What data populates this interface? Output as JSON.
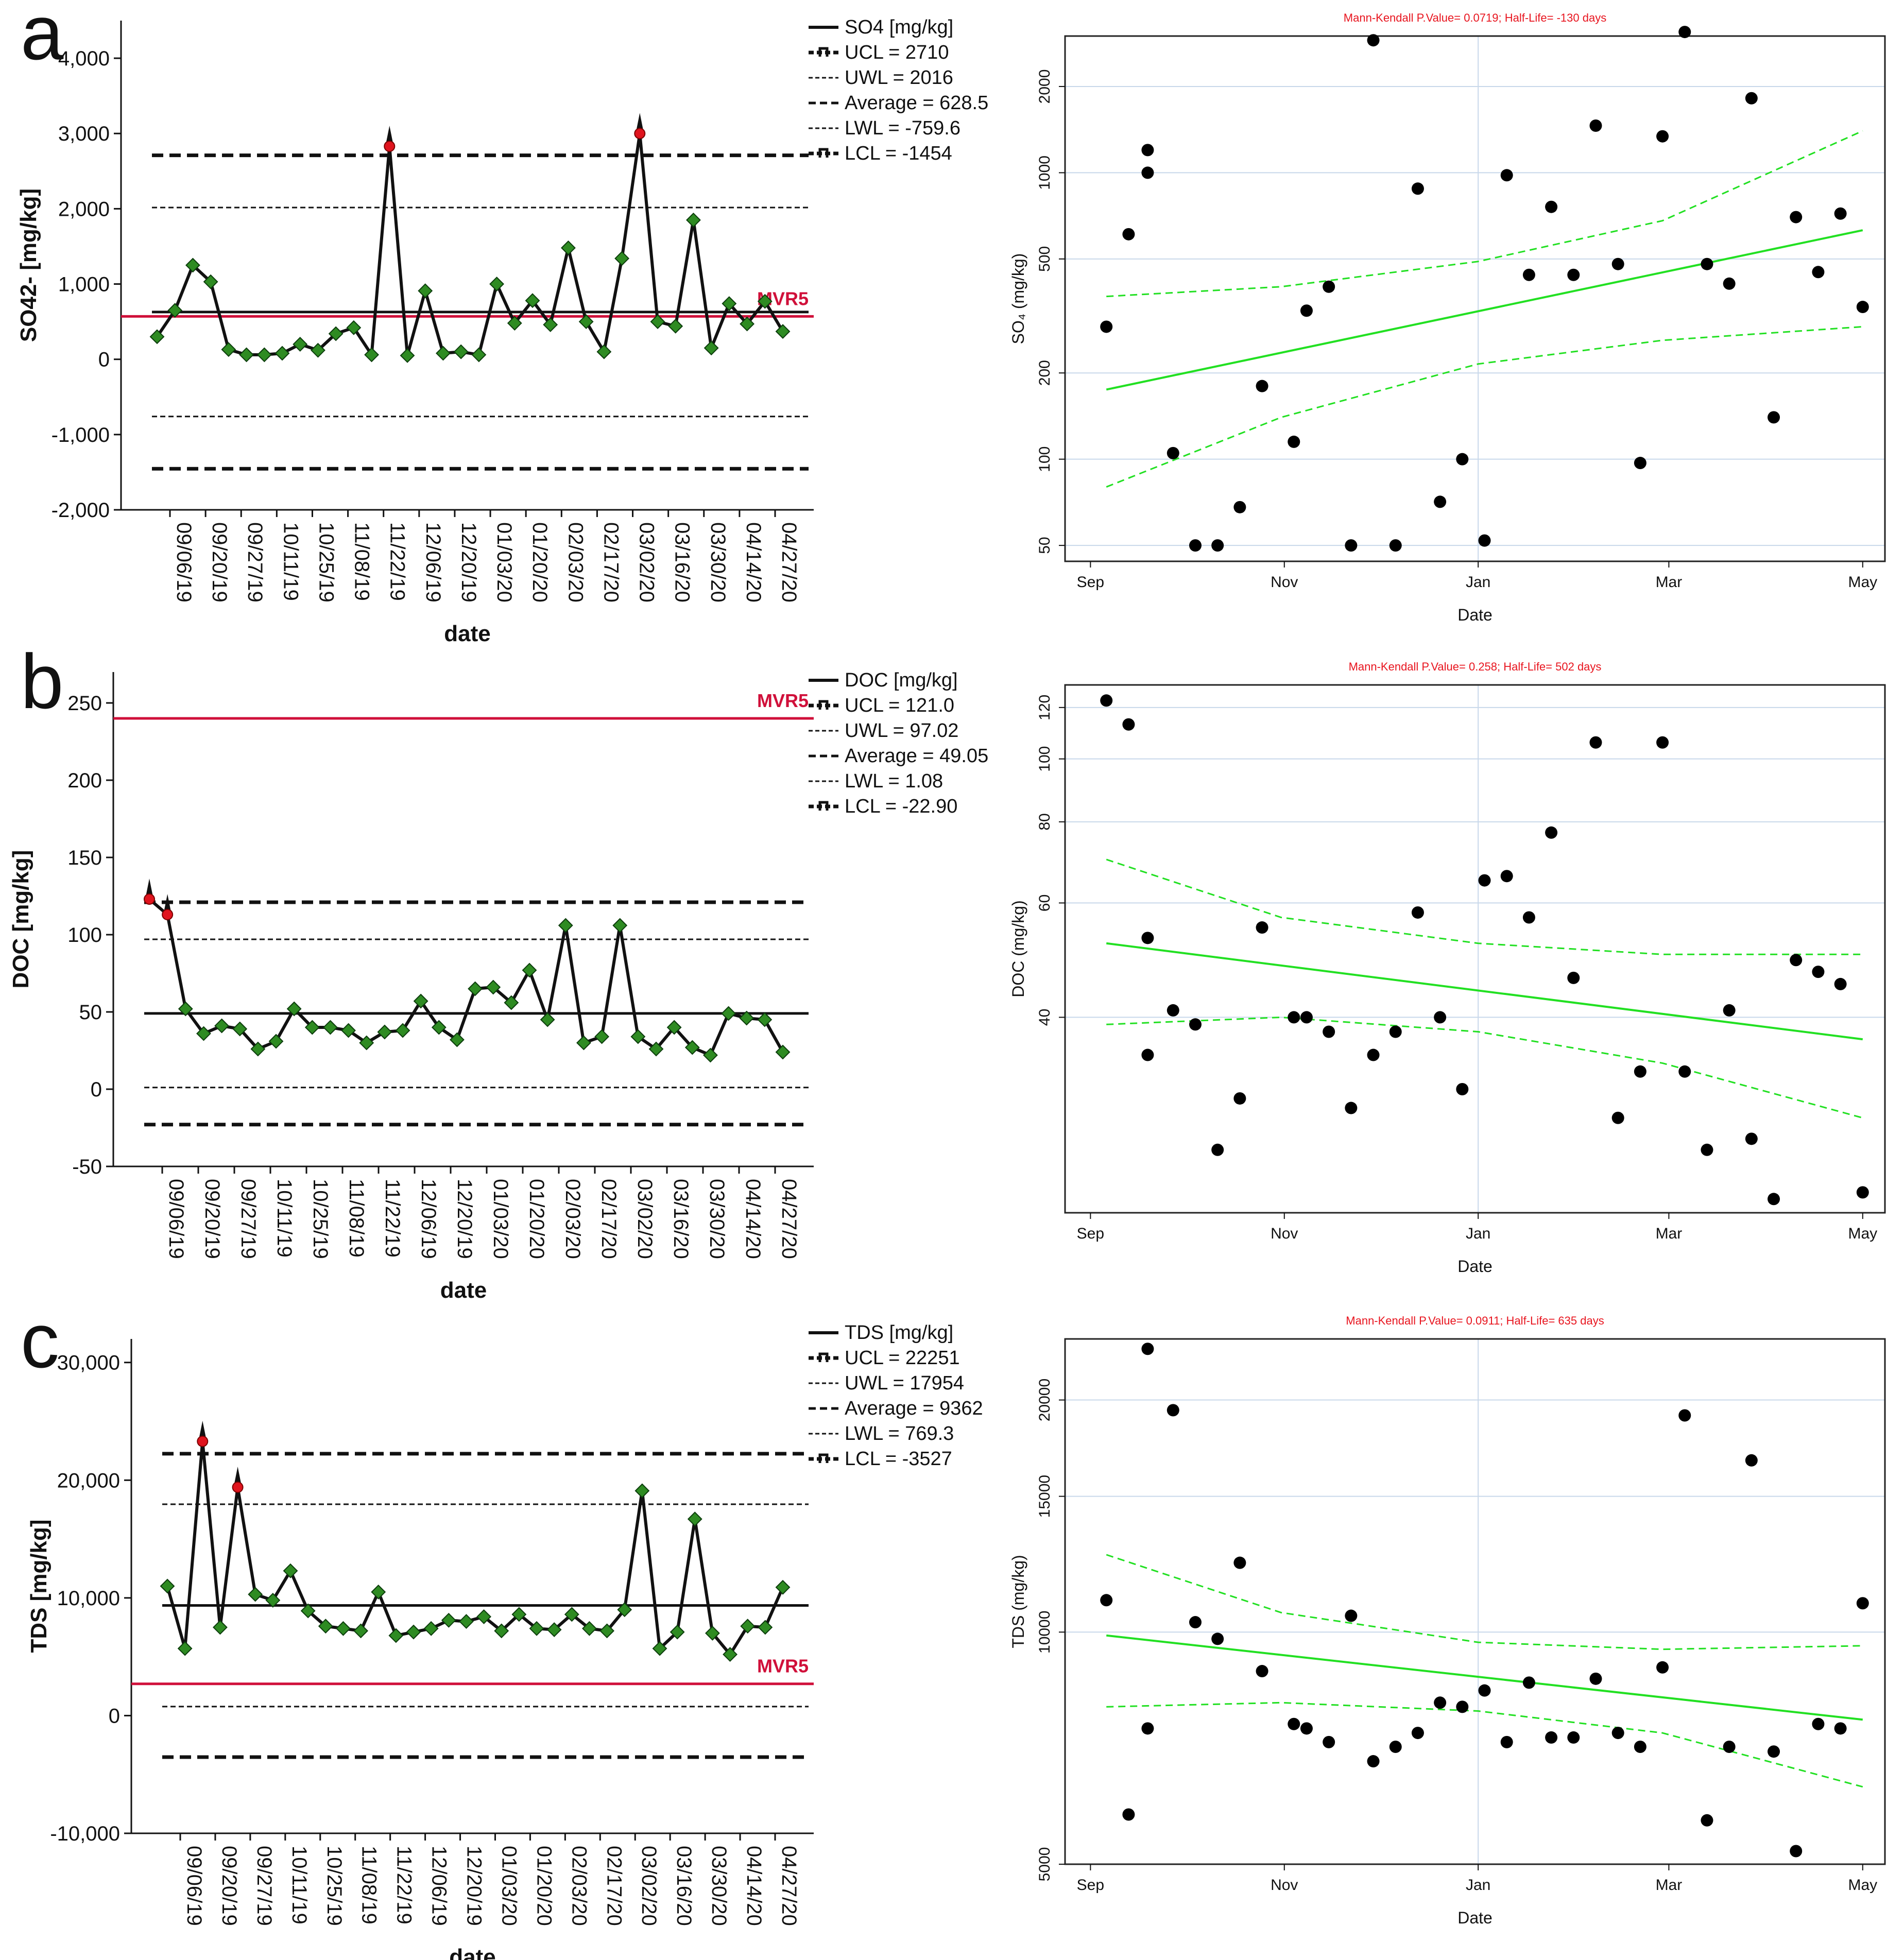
{
  "chart_data": [
    {
      "panel": "a",
      "type": "line",
      "title": "",
      "xlabel": "date",
      "ylabel": "SO42- [mg/kg]",
      "ylim": [
        -2000,
        4500
      ],
      "yticks": [
        4000,
        3000,
        2000,
        1000,
        0,
        -1000,
        -2000
      ],
      "ytick_labels": [
        "4,000",
        "3,000",
        "2,000",
        "1,000",
        "0",
        "-1,000",
        "-2,000"
      ],
      "x_tick_labels": [
        "09/06/19",
        "09/20/19",
        "09/27/19",
        "10/11/19",
        "10/25/19",
        "11/08/19",
        "11/22/19",
        "12/06/19",
        "12/20/19",
        "01/03/20",
        "01/20/20",
        "02/03/20",
        "02/17/20",
        "03/02/20",
        "03/16/20",
        "03/30/20",
        "04/14/20",
        "04/27/20"
      ],
      "values": [
        300,
        650,
        1250,
        1030,
        130,
        60,
        60,
        80,
        200,
        120,
        340,
        420,
        60,
        2830,
        50,
        910,
        80,
        100,
        60,
        1000,
        480,
        780,
        460,
        1480,
        500,
        100,
        1340,
        3000,
        500,
        440,
        1850,
        150,
        740,
        470,
        770,
        370
      ],
      "out_of_control": [
        13,
        27
      ],
      "control_lines": {
        "ucl": 2710,
        "uwl": 2016,
        "average": 628.5,
        "lwl": -759.6,
        "lcl": -1454
      },
      "mvr5": 570,
      "mvr_label": "MVR5",
      "legend": [
        "SO4 [mg/kg]",
        "UCL = 2710",
        "UWL = 2016",
        "Average = 628.5",
        "LWL = -759.6",
        "LCL = -1454"
      ],
      "trend": {
        "title": "Mann-Kendall P.Value= 0.0719; Half-Life= -130 days",
        "xlabel": "Date",
        "ylabel": "SO₄ (mg/kg)",
        "scale": "log",
        "ylim": [
          44,
          3000
        ],
        "yticks": [
          50,
          100,
          200,
          500,
          1000,
          2000
        ],
        "ytick_labels": [
          "50",
          "100",
          "200",
          "500",
          "1000",
          "2000"
        ],
        "xlim": [
          -8,
          240
        ],
        "xticks": [
          0,
          61,
          122,
          182,
          243
        ],
        "xtick_labels": [
          "Sep",
          "Nov",
          "Jan",
          "Mar",
          "May"
        ],
        "vline": 122,
        "points": [
          [
            5,
            290
          ],
          [
            12,
            610
          ],
          [
            18,
            1000
          ],
          [
            18,
            1200
          ],
          [
            26,
            105
          ],
          [
            33,
            50
          ],
          [
            40,
            50
          ],
          [
            47,
            68
          ],
          [
            54,
            180
          ],
          [
            64,
            115
          ],
          [
            68,
            330
          ],
          [
            75,
            400
          ],
          [
            82,
            50
          ],
          [
            89,
            2900
          ],
          [
            96,
            50
          ],
          [
            103,
            880
          ],
          [
            110,
            71
          ],
          [
            117,
            100
          ],
          [
            124,
            52
          ],
          [
            131,
            980
          ],
          [
            138,
            440
          ],
          [
            145,
            760
          ],
          [
            152,
            440
          ],
          [
            159,
            1460
          ],
          [
            166,
            480
          ],
          [
            173,
            97
          ],
          [
            180,
            1340
          ],
          [
            187,
            3100
          ],
          [
            194,
            480
          ],
          [
            201,
            410
          ],
          [
            208,
            1820
          ],
          [
            215,
            140
          ],
          [
            222,
            700
          ],
          [
            229,
            450
          ],
          [
            236,
            720
          ],
          [
            243,
            340
          ]
        ],
        "fit": {
          "x": [
            5,
            243
          ],
          "y": [
            175,
            630
          ]
        },
        "ci_upper": {
          "x": [
            5,
            60,
            122,
            180,
            243
          ],
          "y": [
            370,
            400,
            490,
            680,
            1400
          ]
        },
        "ci_lower": {
          "x": [
            5,
            60,
            122,
            180,
            243
          ],
          "y": [
            80,
            140,
            215,
            260,
            290
          ]
        }
      }
    },
    {
      "panel": "b",
      "type": "line",
      "title": "",
      "xlabel": "date",
      "ylabel": "DOC [mg/kg]",
      "ylim": [
        -50,
        270
      ],
      "yticks": [
        250,
        200,
        150,
        100,
        50,
        0,
        -50
      ],
      "ytick_labels": [
        "250",
        "200",
        "150",
        "100",
        "50",
        "0",
        "-50"
      ],
      "x_tick_labels": [
        "09/06/19",
        "09/20/19",
        "09/27/19",
        "10/11/19",
        "10/25/19",
        "11/08/19",
        "11/22/19",
        "12/06/19",
        "12/20/19",
        "01/03/20",
        "01/20/20",
        "02/03/20",
        "02/17/20",
        "03/02/20",
        "03/16/20",
        "03/30/20",
        "04/14/20",
        "04/27/20"
      ],
      "values": [
        123,
        113,
        52,
        36,
        41,
        39,
        26,
        31,
        52,
        40,
        40,
        38,
        30,
        37,
        38,
        57,
        40,
        32,
        65,
        66,
        56,
        77,
        45,
        106,
        30,
        34,
        106,
        34,
        26,
        40,
        27,
        22,
        49,
        46,
        45,
        24
      ],
      "out_of_control": [
        0,
        1
      ],
      "control_lines": {
        "ucl": 121.0,
        "uwl": 97.02,
        "average": 49.05,
        "lwl": 1.08,
        "lcl": -22.9
      },
      "mvr5": 240,
      "mvr_label": "MVR5",
      "legend": [
        "DOC [mg/kg]",
        "UCL = 121.0",
        "UWL = 97.02",
        "Average = 49.05",
        "LWL = 1.08",
        "LCL = -22.90"
      ],
      "trend": {
        "title": "Mann-Kendall P.Value= 0.258; Half-Life= 502 days",
        "xlabel": "Date",
        "ylabel": "DOC (mg/kg)",
        "scale": "log",
        "ylim": [
          20,
          130
        ],
        "yticks": [
          40,
          60,
          80,
          100,
          120
        ],
        "ytick_labels": [
          "40",
          "60",
          "80",
          "100",
          "120"
        ],
        "xlim": [
          -8,
          240
        ],
        "xticks": [
          0,
          61,
          122,
          182,
          243
        ],
        "xtick_labels": [
          "Sep",
          "Nov",
          "Jan",
          "Mar",
          "May"
        ],
        "vline": 122,
        "points": [
          [
            5,
            123
          ],
          [
            12,
            113
          ],
          [
            18,
            53
          ],
          [
            18,
            35
          ],
          [
            26,
            41
          ],
          [
            33,
            39
          ],
          [
            40,
            25
          ],
          [
            47,
            30
          ],
          [
            54,
            55
          ],
          [
            64,
            40
          ],
          [
            68,
            40
          ],
          [
            75,
            38
          ],
          [
            82,
            29
          ],
          [
            89,
            35
          ],
          [
            96,
            38
          ],
          [
            103,
            58
          ],
          [
            110,
            40
          ],
          [
            117,
            31
          ],
          [
            124,
            65
          ],
          [
            131,
            66
          ],
          [
            138,
            57
          ],
          [
            145,
            77
          ],
          [
            152,
            46
          ],
          [
            159,
            106
          ],
          [
            166,
            28
          ],
          [
            173,
            33
          ],
          [
            180,
            106
          ],
          [
            187,
            33
          ],
          [
            194,
            25
          ],
          [
            201,
            41
          ],
          [
            208,
            26
          ],
          [
            215,
            21
          ],
          [
            222,
            49
          ],
          [
            229,
            47
          ],
          [
            236,
            45
          ],
          [
            243,
            21.5
          ]
        ],
        "fit": {
          "x": [
            5,
            243
          ],
          "y": [
            52,
            37
          ]
        },
        "ci_upper": {
          "x": [
            5,
            60,
            122,
            180,
            243
          ],
          "y": [
            70,
            57,
            52,
            50,
            50
          ]
        },
        "ci_lower": {
          "x": [
            5,
            60,
            122,
            180,
            243
          ],
          "y": [
            39,
            40,
            38,
            34,
            28
          ]
        }
      }
    },
    {
      "panel": "c",
      "type": "line",
      "title": "",
      "xlabel": "date",
      "ylabel": "TDS [mg/kg]",
      "ylim": [
        -10000,
        32000
      ],
      "yticks": [
        30000,
        20000,
        10000,
        0,
        -10000
      ],
      "ytick_labels": [
        "30,000",
        "20,000",
        "10,000",
        "0",
        "-10,000"
      ],
      "x_tick_labels": [
        "09/06/19",
        "09/20/19",
        "09/27/19",
        "10/11/19",
        "10/25/19",
        "11/08/19",
        "11/22/19",
        "12/06/19",
        "12/20/19",
        "01/03/20",
        "01/20/20",
        "02/03/20",
        "02/17/20",
        "03/02/20",
        "03/16/20",
        "03/30/20",
        "04/14/20",
        "04/27/20"
      ],
      "values": [
        11000,
        5700,
        23300,
        7500,
        19400,
        10300,
        9800,
        12300,
        8900,
        7600,
        7400,
        7200,
        10500,
        6800,
        7100,
        7400,
        8100,
        8000,
        8400,
        7200,
        8600,
        7400,
        7300,
        8600,
        7400,
        7200,
        9000,
        19100,
        5700,
        7100,
        16700,
        7000,
        5200,
        7600,
        7500,
        10900
      ],
      "out_of_control": [
        2,
        4
      ],
      "control_lines": {
        "ucl": 22251,
        "uwl": 17954,
        "average": 9362,
        "lwl": 769.3,
        "lcl": -3527
      },
      "mvr5": 2700,
      "mvr_label": "MVR5",
      "legend": [
        "TDS [mg/kg]",
        "UCL = 22251",
        "UWL = 17954",
        "Average = 9362",
        "LWL = 769.3",
        "LCL = -3527"
      ],
      "trend": {
        "title": "Mann-Kendall P.Value= 0.0911; Half-Life= 635 days",
        "xlabel": "Date",
        "ylabel": "TDS (mg/kg)",
        "scale": "log",
        "ylim": [
          5000,
          24000
        ],
        "yticks": [
          5000,
          10000,
          15000,
          20000
        ],
        "ytick_labels": [
          "5000",
          "10000",
          "15000",
          "20000"
        ],
        "xlim": [
          -8,
          240
        ],
        "xticks": [
          0,
          61,
          122,
          182,
          243
        ],
        "xtick_labels": [
          "Sep",
          "Nov",
          "Jan",
          "Mar",
          "May"
        ],
        "vline": 122,
        "points": [
          [
            5,
            11000
          ],
          [
            12,
            5800
          ],
          [
            18,
            23300
          ],
          [
            18,
            7500
          ],
          [
            26,
            19400
          ],
          [
            33,
            10300
          ],
          [
            40,
            9800
          ],
          [
            47,
            12300
          ],
          [
            54,
            8900
          ],
          [
            64,
            7600
          ],
          [
            68,
            7500
          ],
          [
            75,
            7200
          ],
          [
            82,
            10500
          ],
          [
            89,
            6800
          ],
          [
            96,
            7100
          ],
          [
            103,
            7400
          ],
          [
            110,
            8100
          ],
          [
            117,
            8000
          ],
          [
            124,
            8400
          ],
          [
            131,
            7200
          ],
          [
            138,
            8600
          ],
          [
            145,
            7300
          ],
          [
            152,
            7300
          ],
          [
            159,
            8700
          ],
          [
            166,
            7400
          ],
          [
            173,
            7100
          ],
          [
            180,
            9000
          ],
          [
            187,
            19100
          ],
          [
            194,
            5700
          ],
          [
            201,
            7100
          ],
          [
            208,
            16700
          ],
          [
            215,
            7000
          ],
          [
            222,
            5200
          ],
          [
            229,
            7600
          ],
          [
            236,
            7500
          ],
          [
            243,
            10900
          ]
        ],
        "fit": {
          "x": [
            5,
            243
          ],
          "y": [
            9900,
            7700
          ]
        },
        "ci_upper": {
          "x": [
            5,
            60,
            122,
            180,
            243
          ],
          "y": [
            12600,
            10600,
            9700,
            9500,
            9600
          ]
        },
        "ci_lower": {
          "x": [
            5,
            60,
            122,
            180,
            243
          ],
          "y": [
            8000,
            8100,
            7900,
            7400,
            6300
          ]
        }
      }
    }
  ],
  "colors": {
    "series": "#111111",
    "marker_fill": "#2e8b22",
    "marker_edge": "#0c3d0c",
    "out_marker": "#e0141e",
    "mvr_line": "#d0103a",
    "trend_line": "#22e022",
    "grid": "#c8d8ea",
    "title_red": "#e8141e"
  }
}
